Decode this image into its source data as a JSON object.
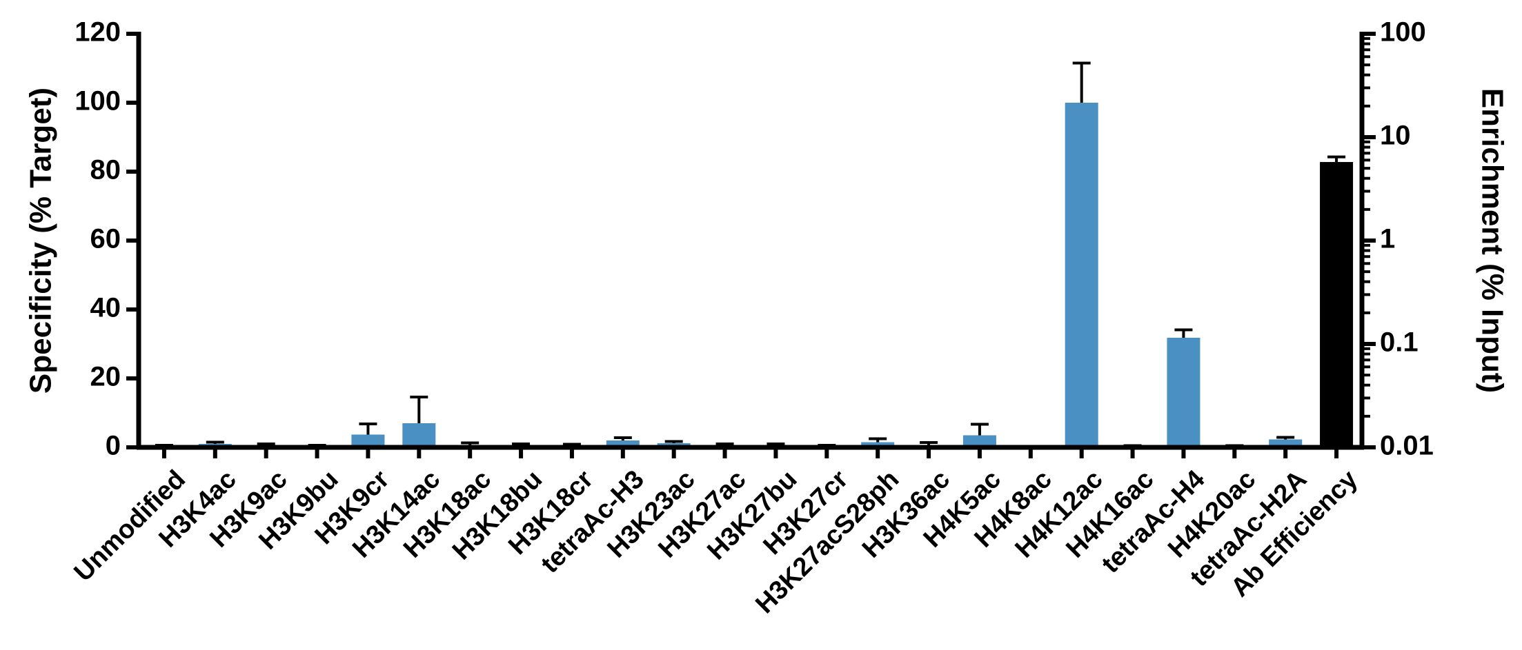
{
  "chart_data": {
    "type": "bar",
    "y_label": "Specificity (% Target)",
    "y2_label": "Enrichment (% Input)",
    "categories": [
      "Unmodified",
      "H3K4ac",
      "H3K9ac",
      "H3K9bu",
      "H3K9cr",
      "H3K14ac",
      "H3K18ac",
      "H3K18bu",
      "H3K18cr",
      "tetraAc-H3",
      "H3K23ac",
      "H3K27ac",
      "H3K27bu",
      "H3K27cr",
      "H3K27acS28ph",
      "H3K36ac",
      "H4K5ac",
      "H4K8ac",
      "H4K12ac",
      "H4K16ac",
      "tetraAc-H4",
      "H4K20ac",
      "tetraAc-H2A",
      "Ab Efficiency"
    ],
    "series": [
      {
        "color": "#4a90c2",
        "values": [
          0.3,
          1,
          0.5,
          0.3,
          3.7,
          7,
          0.5,
          0.4,
          0.3,
          2,
          1.2,
          0.5,
          0.5,
          0.3,
          1.5,
          0.7,
          3.5,
          0.1,
          100,
          0.3,
          31.8,
          0.3,
          2.3,
          null
        ],
        "errors": [
          0.3,
          0.5,
          0.5,
          0.3,
          3.1,
          7.6,
          0.8,
          0.6,
          0.6,
          0.8,
          0.5,
          0.5,
          0.5,
          0.3,
          1,
          0.7,
          3.2,
          0,
          11.5,
          0.2,
          2.3,
          0.2,
          0.6,
          null
        ]
      },
      {
        "color": "#000000",
        "axis": "y2",
        "values": [
          null,
          null,
          null,
          null,
          null,
          null,
          null,
          null,
          null,
          null,
          null,
          null,
          null,
          null,
          null,
          null,
          null,
          null,
          null,
          null,
          null,
          null,
          null,
          5.75
        ],
        "errors": [
          null,
          null,
          null,
          null,
          null,
          null,
          null,
          null,
          null,
          null,
          null,
          null,
          null,
          null,
          null,
          null,
          null,
          null,
          null,
          null,
          null,
          null,
          null,
          0.7
        ]
      }
    ],
    "ylim": [
      0,
      120
    ],
    "yticks": [
      0,
      20,
      40,
      60,
      80,
      100,
      120
    ],
    "y2lim": [
      0.01,
      100
    ],
    "y2ticks": [
      0.01,
      0.1,
      1,
      10,
      100
    ],
    "y2log": true
  }
}
